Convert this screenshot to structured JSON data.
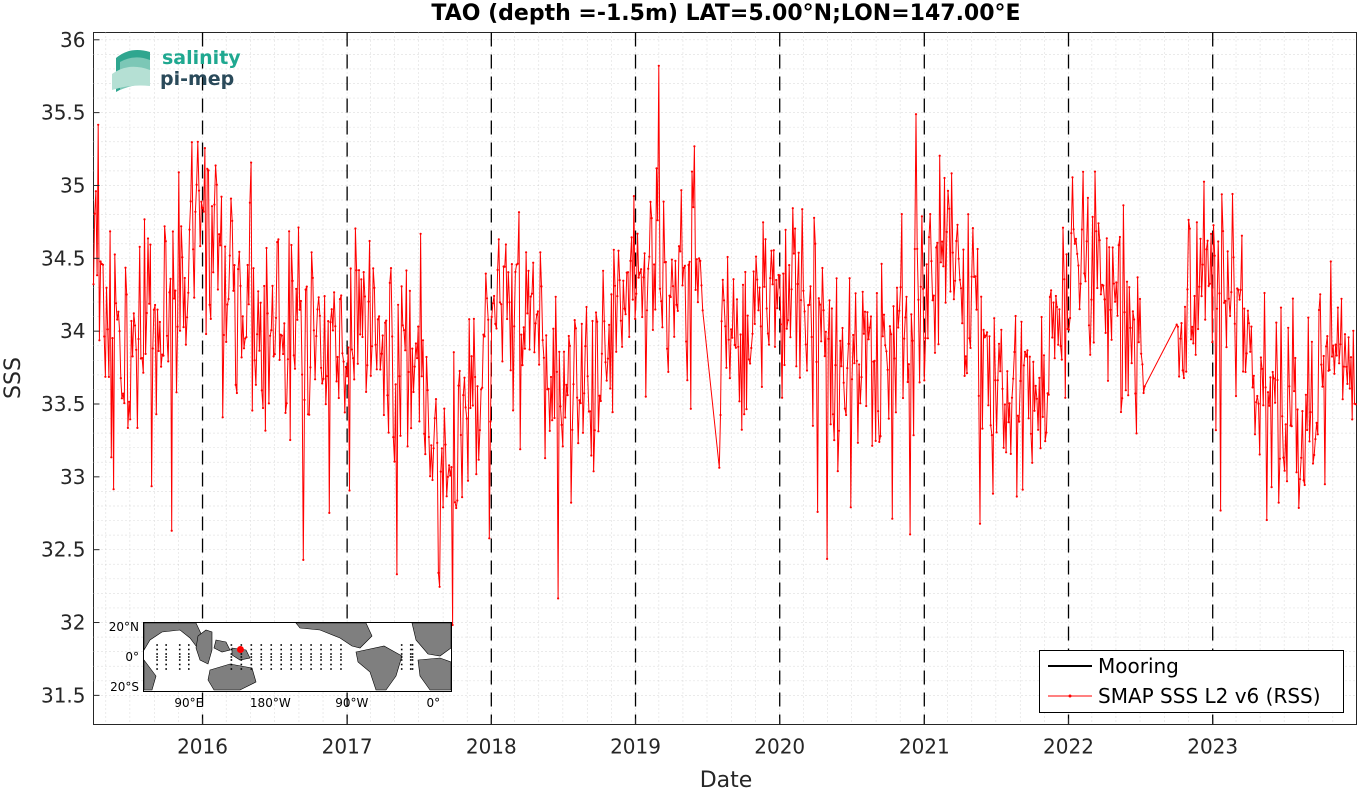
{
  "logo": {
    "line1": "salinity",
    "line2": "pi-mep",
    "color1": "#1fa890",
    "color2": "#2a4a5a"
  },
  "inset_map": {
    "lat_labels": [
      {
        "label": "20°N",
        "lat": 20
      },
      {
        "label": "0°",
        "lat": 0
      },
      {
        "label": "20°S",
        "lat": -20
      }
    ],
    "lon_labels": [
      {
        "label": "90°E",
        "lon": 90
      },
      {
        "label": "180°W",
        "lon": 180
      },
      {
        "label": "90°W",
        "lon": 270
      },
      {
        "label": "0°",
        "lon": 360
      }
    ],
    "marker_color": "#ff0000",
    "marker": {
      "lon": 147,
      "lat": 5
    }
  },
  "chart_data": {
    "type": "line",
    "title": "TAO (depth =-1.5m) LAT=5.00°N;LON=147.00°E",
    "xlabel": "Date",
    "ylabel": "SSS",
    "xlim": [
      "2015-03-31",
      "2023-12-31"
    ],
    "ylim": [
      31.3,
      36.05
    ],
    "yticks": [
      31.5,
      32,
      32.5,
      33,
      33.5,
      34,
      34.5,
      35,
      35.5,
      36
    ],
    "xticks": [
      "2016",
      "2017",
      "2018",
      "2019",
      "2020",
      "2021",
      "2022",
      "2023"
    ],
    "year_boundaries": [
      "2016-01-01",
      "2017-01-01",
      "2018-01-01",
      "2019-01-01",
      "2020-01-01",
      "2021-01-01",
      "2022-01-01",
      "2023-01-01"
    ],
    "grid": true,
    "legend_position": "bottom-right",
    "series": [
      {
        "name": "Mooring",
        "color": "#000000",
        "values": []
      },
      {
        "name": "SMAP SSS L2 v6 (RSS)",
        "color": "#ff0000",
        "x": [
          "2015-03-31",
          "2015-05-01",
          "2015-06-01",
          "2015-07-01",
          "2015-08-01",
          "2015-09-01",
          "2015-10-01",
          "2015-11-01",
          "2015-12-01",
          "2016-01-01",
          "2016-02-01",
          "2016-03-01",
          "2016-04-01",
          "2016-05-01",
          "2016-06-01",
          "2016-07-01",
          "2016-08-01",
          "2016-09-01",
          "2016-10-01",
          "2016-11-01",
          "2016-12-01",
          "2017-01-01",
          "2017-02-01",
          "2017-03-01",
          "2017-04-01",
          "2017-05-01",
          "2017-06-01",
          "2017-07-01",
          "2017-08-01",
          "2017-09-01",
          "2017-10-01",
          "2017-11-01",
          "2017-12-01",
          "2018-01-01",
          "2018-02-01",
          "2018-03-01",
          "2018-04-01",
          "2018-05-01",
          "2018-06-01",
          "2018-07-01",
          "2018-08-01",
          "2018-09-01",
          "2018-10-01",
          "2018-11-01",
          "2018-12-01",
          "2019-01-01",
          "2019-02-01",
          "2019-03-01",
          "2019-04-01",
          "2019-05-01",
          "2019-06-01",
          "2019-07-01",
          "2019-08-01",
          "2019-09-01",
          "2019-10-01",
          "2019-11-01",
          "2019-12-01",
          "2020-01-01",
          "2020-02-01",
          "2020-03-01",
          "2020-04-01",
          "2020-05-01",
          "2020-06-01",
          "2020-07-01",
          "2020-08-01",
          "2020-09-01",
          "2020-10-01",
          "2020-11-01",
          "2020-12-01",
          "2021-01-01",
          "2021-02-01",
          "2021-03-01",
          "2021-04-01",
          "2021-05-01",
          "2021-06-01",
          "2021-07-01",
          "2021-08-01",
          "2021-09-01",
          "2021-10-01",
          "2021-11-01",
          "2021-12-01",
          "2022-01-01",
          "2022-02-01",
          "2022-03-01",
          "2022-04-01",
          "2022-05-01",
          "2022-06-01",
          "2022-07-01",
          "2022-08-01",
          "2022-09-01",
          "2022-10-01",
          "2022-11-01",
          "2022-12-01",
          "2023-01-01",
          "2023-02-01",
          "2023-03-01",
          "2023-04-01",
          "2023-05-01",
          "2023-06-01",
          "2023-07-01",
          "2023-08-01",
          "2023-09-01",
          "2023-10-01",
          "2023-11-01",
          "2023-12-01"
        ],
        "values": [
          34.3,
          34.1,
          33.9,
          33.9,
          34.0,
          33.9,
          34.1,
          34.3,
          34.6,
          34.7,
          34.6,
          34.5,
          34.3,
          34.0,
          33.9,
          33.9,
          34.0,
          34.0,
          33.9,
          33.8,
          33.9,
          34.0,
          34.1,
          34.0,
          33.8,
          33.7,
          33.6,
          33.6,
          33.4,
          33.3,
          33.2,
          33.3,
          33.7,
          34.1,
          34.3,
          34.2,
          34.0,
          33.8,
          33.6,
          33.5,
          33.5,
          33.6,
          33.8,
          34.0,
          34.2,
          34.4,
          34.5,
          34.4,
          34.4,
          34.4,
          34.4,
          34.3,
          33.9,
          33.9,
          33.9,
          34.0,
          34.1,
          34.2,
          34.2,
          34.1,
          34.0,
          34.0,
          33.9,
          33.8,
          33.8,
          33.8,
          33.9,
          34.0,
          34.1,
          34.3,
          34.4,
          34.5,
          34.3,
          34.1,
          33.8,
          33.6,
          33.5,
          33.5,
          33.5,
          33.6,
          33.9,
          34.5,
          34.6,
          34.5,
          34.4,
          34.2,
          34.0,
          33.8,
          null,
          null,
          33.6,
          34.2,
          34.5,
          34.6,
          34.4,
          34.2,
          33.9,
          33.7,
          33.6,
          33.6,
          33.5,
          33.5,
          33.6,
          33.8,
          33.9
        ],
        "spread": 0.42,
        "seed": 13,
        "gaps": [
          [
            "2019-06-20",
            "2019-08-01"
          ],
          [
            "2022-07-15",
            "2022-10-01"
          ]
        ]
      }
    ]
  }
}
